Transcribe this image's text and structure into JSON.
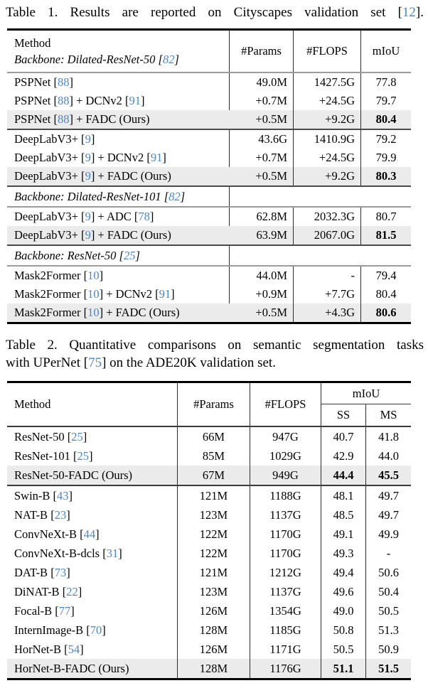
{
  "palette": {
    "ref_blue": "#4a87c8",
    "highlight_bg": "#ebebeb"
  },
  "caption1": {
    "segments": [
      "Table 1. Results are reported on Cityscapes validation set [",
      "12",
      "]."
    ]
  },
  "caption2": {
    "line1": "Table 2. Quantitative comparisons on semantic segmentation tasks",
    "line2": [
      "with UPerNet [",
      "75",
      "] on the ADE20K validation set."
    ]
  },
  "table1": {
    "header": {
      "method": "Method",
      "backbone": [
        "Backbone: Dilated-ResNet-50 [",
        "82",
        "]"
      ],
      "params": "#Params",
      "flops": "#FLOPS",
      "miou": "mIoU"
    },
    "backbone101": [
      "Backbone: Dilated-ResNet-101 [",
      "82",
      "]"
    ],
    "backbone50": [
      "Backbone: ResNet-50 [",
      "25",
      "]"
    ],
    "rows": [
      {
        "m": [
          "PSPNet [",
          "88",
          "]"
        ],
        "params": "49.0M",
        "flops": "1427.5G",
        "miou": "77.8"
      },
      {
        "m": [
          "PSPNet [",
          "88",
          "] + DCNv2 [",
          "91",
          "]"
        ],
        "params": "+0.7M",
        "flops": "+24.5G",
        "miou": "79.7"
      },
      {
        "m": [
          "PSPNet [",
          "88",
          "] + FADC (Ours)"
        ],
        "params": "+0.5M",
        "flops": "+9.2G",
        "miou": "80.4"
      },
      {
        "m": [
          "DeepLabV3+ [",
          "9",
          "]"
        ],
        "params": "43.6G",
        "flops": "1410.9G",
        "miou": "79.2"
      },
      {
        "m": [
          "DeepLabV3+ [",
          "9",
          "] + DCNv2 [",
          "91",
          "]"
        ],
        "params": "+0.7M",
        "flops": "+24.5G",
        "miou": "79.9"
      },
      {
        "m": [
          "DeepLabV3+ [",
          "9",
          "] + FADC (Ours)"
        ],
        "params": "+0.5M",
        "flops": "+9.2G",
        "miou": "80.3"
      },
      {
        "m": [
          "DeepLabV3+ [",
          "9",
          "] + ADC [",
          "78",
          "]"
        ],
        "params": "62.8M",
        "flops": "2032.3G",
        "miou": "80.7"
      },
      {
        "m": [
          "DeepLabV3+ [",
          "9",
          "] + FADC (Ours)"
        ],
        "params": "63.9M",
        "flops": "2067.0G",
        "miou": "81.5"
      },
      {
        "m": [
          "Mask2Former [",
          "10",
          "]"
        ],
        "params": "44.0M",
        "flops": "-",
        "miou": "79.4"
      },
      {
        "m": [
          "Mask2Former [",
          "10",
          "] + DCNv2 [",
          "91",
          "]"
        ],
        "params": "+0.9M",
        "flops": "+7.7G",
        "miou": "80.4"
      },
      {
        "m": [
          "Mask2Former [",
          "10",
          "] + FADC (Ours)"
        ],
        "params": "+0.5M",
        "flops": "+4.3G",
        "miou": "80.6"
      }
    ]
  },
  "table2": {
    "header": {
      "method": "Method",
      "params": "#Params",
      "flops": "#FLOPS",
      "miou": "mIoU",
      "ss": "SS",
      "ms": "MS"
    },
    "rows": [
      {
        "m": [
          "ResNet-50 [",
          "25",
          "]"
        ],
        "params": "66M",
        "flops": "947G",
        "ss": "40.7",
        "ms": "41.8"
      },
      {
        "m": [
          "ResNet-101 [",
          "25",
          "]"
        ],
        "params": "85M",
        "flops": "1029G",
        "ss": "42.9",
        "ms": "44.0"
      },
      {
        "m": [
          "ResNet-50-FADC (Ours)"
        ],
        "params": "67M",
        "flops": "949G",
        "ss": "44.4",
        "ms": "45.5"
      },
      {
        "m": [
          "Swin-B [",
          "43",
          "]"
        ],
        "params": "121M",
        "flops": "1188G",
        "ss": "48.1",
        "ms": "49.7"
      },
      {
        "m": [
          "NAT-B [",
          "23",
          "]"
        ],
        "params": "123M",
        "flops": "1137G",
        "ss": "48.5",
        "ms": "49.7"
      },
      {
        "m": [
          "ConvNeXt-B [",
          "44",
          "]"
        ],
        "params": "122M",
        "flops": "1170G",
        "ss": "49.1",
        "ms": "49.9"
      },
      {
        "m": [
          "ConvNeXt-B-dcls [",
          "31",
          "]"
        ],
        "params": "122M",
        "flops": "1170G",
        "ss": "49.3",
        "ms": "-"
      },
      {
        "m": [
          "DAT-B [",
          "73",
          "]"
        ],
        "params": "121M",
        "flops": "1212G",
        "ss": "49.4",
        "ms": "50.6"
      },
      {
        "m": [
          "DiNAT-B [",
          "22",
          "]"
        ],
        "params": "123M",
        "flops": "1137G",
        "ss": "49.6",
        "ms": "50.4"
      },
      {
        "m": [
          "Focal-B [",
          "77",
          "]"
        ],
        "params": "126M",
        "flops": "1354G",
        "ss": "49.0",
        "ms": "50.5"
      },
      {
        "m": [
          "InternImage-B [",
          "70",
          "]"
        ],
        "params": "128M",
        "flops": "1185G",
        "ss": "50.8",
        "ms": "51.3"
      },
      {
        "m": [
          "HorNet-B [",
          "54",
          "]"
        ],
        "params": "126M",
        "flops": "1171G",
        "ss": "50.5",
        "ms": "50.9"
      },
      {
        "m": [
          "HorNet-B-FADC (Ours)"
        ],
        "params": "128M",
        "flops": "1176G",
        "ss": "51.1",
        "ms": "51.5"
      }
    ]
  }
}
